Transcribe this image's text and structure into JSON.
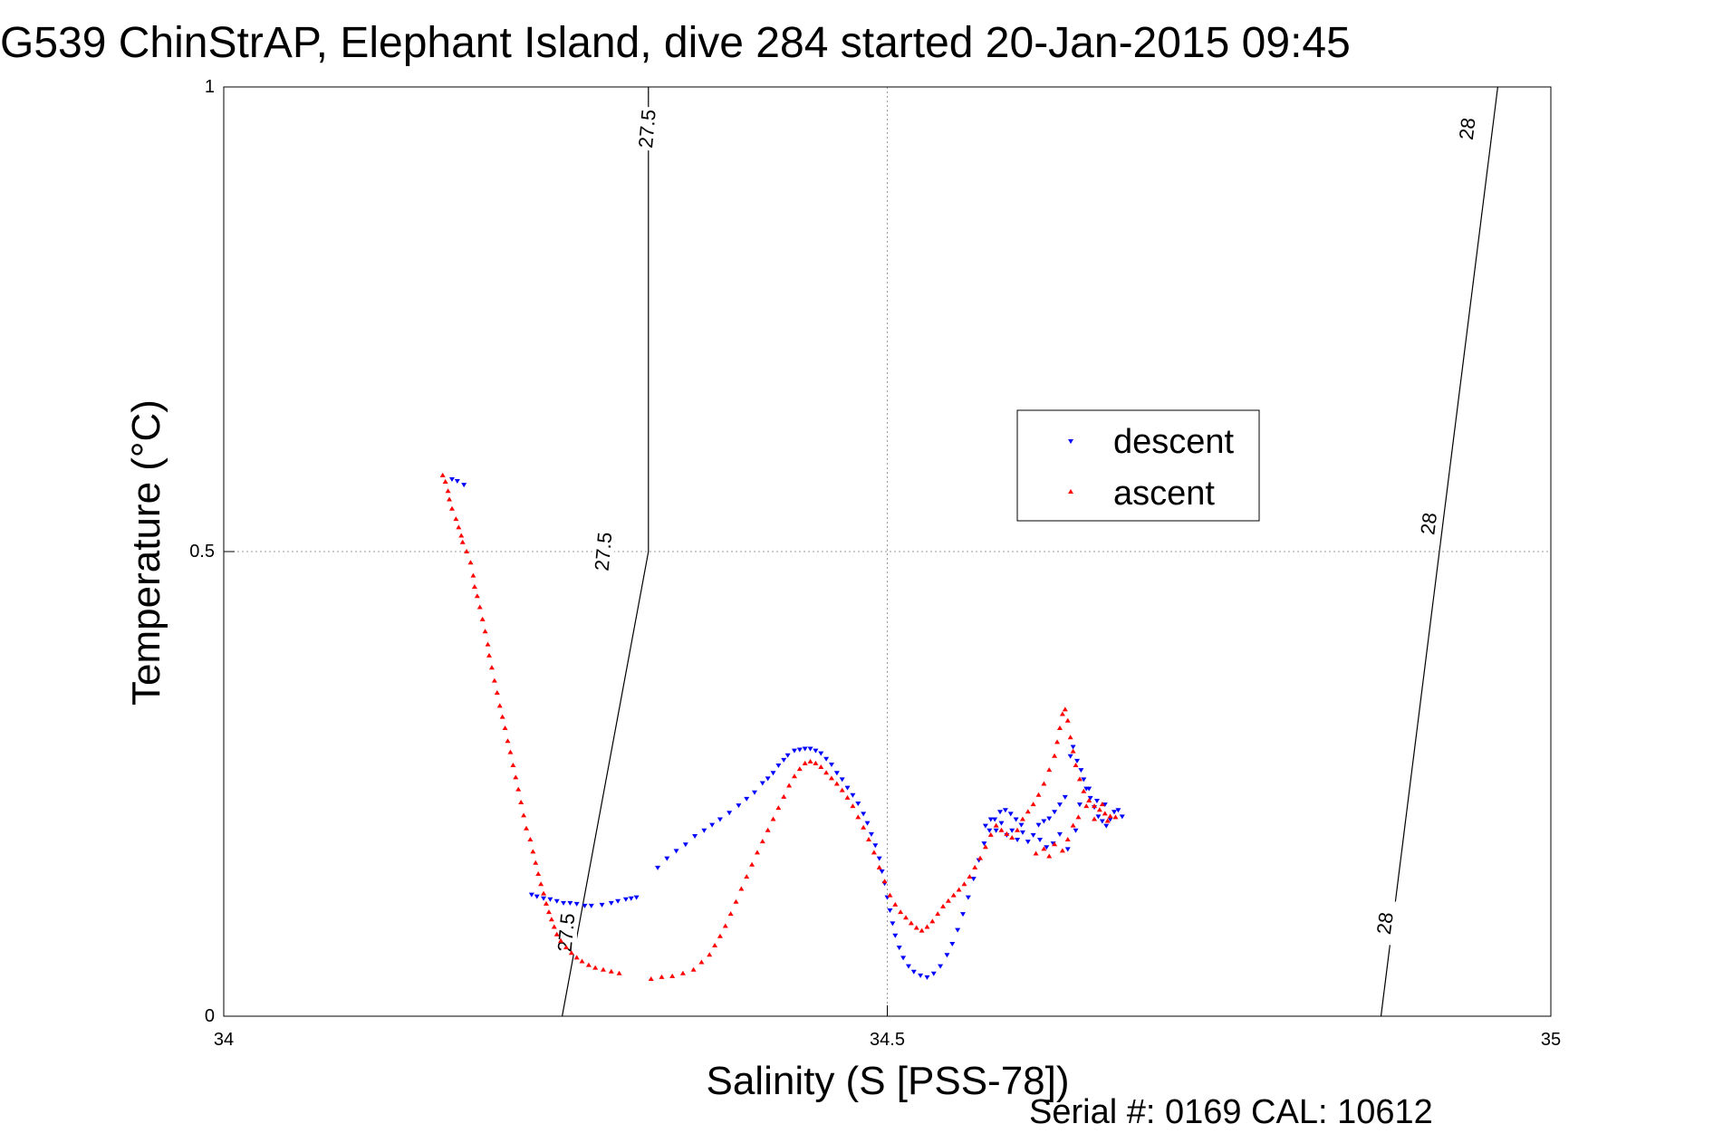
{
  "chart_data": {
    "type": "scatter",
    "title": "G539 ChinStrAP, Elephant Island, dive 284 started 20-Jan-2015 09:45",
    "xlabel": "Salinity (S [PSS-78])",
    "ylabel": "Temperature (°C)",
    "xlim": [
      34,
      35
    ],
    "ylim": [
      0,
      1
    ],
    "xticks": [
      "34",
      "34.5",
      "35"
    ],
    "yticks": [
      "0",
      "0.5",
      "1"
    ],
    "grid": true,
    "legend_position": "right",
    "footnote": "Serial #: 0169 CAL: 10612",
    "isopycnals": [
      {
        "label": "27.5",
        "points": [
          [
            34.255,
            0
          ],
          [
            34.32,
            0.5
          ],
          [
            34.32,
            1
          ]
        ],
        "label_positions": [
          [
            34.258,
            0.09
          ],
          [
            34.286,
            0.5
          ],
          [
            34.319,
            0.955
          ]
        ]
      },
      {
        "label": "28",
        "points": [
          [
            34.872,
            0
          ],
          [
            34.96,
            1
          ]
        ],
        "label_positions": [
          [
            34.875,
            0.1
          ],
          [
            34.908,
            0.53
          ],
          [
            34.937,
            0.955
          ]
        ]
      }
    ],
    "series": [
      {
        "name": "descent",
        "color": "#0000ff",
        "marker": "triangle-down",
        "points": [
          [
            34.172,
            0.578
          ],
          [
            34.176,
            0.576
          ],
          [
            34.181,
            0.572
          ],
          [
            34.232,
            0.131
          ],
          [
            34.236,
            0.129
          ],
          [
            34.241,
            0.127
          ],
          [
            34.246,
            0.126
          ],
          [
            34.251,
            0.124
          ],
          [
            34.256,
            0.122
          ],
          [
            34.261,
            0.122
          ],
          [
            34.266,
            0.121
          ],
          [
            34.272,
            0.119
          ],
          [
            34.277,
            0.119
          ],
          [
            34.285,
            0.12
          ],
          [
            34.292,
            0.122
          ],
          [
            34.297,
            0.124
          ],
          [
            34.303,
            0.126
          ],
          [
            34.307,
            0.127
          ],
          [
            34.311,
            0.128
          ],
          [
            34.327,
            0.16
          ],
          [
            34.334,
            0.17
          ],
          [
            34.341,
            0.178
          ],
          [
            34.348,
            0.185
          ],
          [
            34.355,
            0.194
          ],
          [
            34.362,
            0.2
          ],
          [
            34.368,
            0.206
          ],
          [
            34.374,
            0.212
          ],
          [
            34.381,
            0.219
          ],
          [
            34.388,
            0.227
          ],
          [
            34.394,
            0.234
          ],
          [
            34.4,
            0.241
          ],
          [
            34.406,
            0.251
          ],
          [
            34.41,
            0.256
          ],
          [
            34.414,
            0.262
          ],
          [
            34.418,
            0.27
          ],
          [
            34.422,
            0.276
          ],
          [
            34.425,
            0.281
          ],
          [
            34.43,
            0.286
          ],
          [
            34.434,
            0.287
          ],
          [
            34.438,
            0.288
          ],
          [
            34.442,
            0.288
          ],
          [
            34.446,
            0.286
          ],
          [
            34.45,
            0.283
          ],
          [
            34.454,
            0.277
          ],
          [
            34.458,
            0.271
          ],
          [
            34.462,
            0.262
          ],
          [
            34.466,
            0.255
          ],
          [
            34.47,
            0.246
          ],
          [
            34.474,
            0.238
          ],
          [
            34.478,
            0.229
          ],
          [
            34.482,
            0.218
          ],
          [
            34.485,
            0.208
          ],
          [
            34.488,
            0.196
          ],
          [
            34.491,
            0.184
          ],
          [
            34.494,
            0.17
          ],
          [
            34.496,
            0.156
          ],
          [
            34.498,
            0.143
          ],
          [
            34.5,
            0.128
          ],
          [
            34.502,
            0.114
          ],
          [
            34.504,
            0.1
          ],
          [
            34.506,
            0.087
          ],
          [
            34.509,
            0.074
          ],
          [
            34.512,
            0.063
          ],
          [
            34.516,
            0.054
          ],
          [
            34.52,
            0.048
          ],
          [
            34.525,
            0.044
          ],
          [
            34.53,
            0.042
          ],
          [
            34.535,
            0.046
          ],
          [
            34.54,
            0.054
          ],
          [
            34.545,
            0.066
          ],
          [
            34.549,
            0.078
          ],
          [
            34.553,
            0.093
          ],
          [
            34.557,
            0.11
          ],
          [
            34.561,
            0.128
          ],
          [
            34.565,
            0.148
          ],
          [
            34.569,
            0.168
          ],
          [
            34.573,
            0.186
          ],
          [
            34.577,
            0.2
          ],
          [
            34.581,
            0.212
          ],
          [
            34.585,
            0.22
          ],
          [
            34.589,
            0.222
          ],
          [
            34.593,
            0.218
          ],
          [
            34.597,
            0.212
          ],
          [
            34.601,
            0.206
          ],
          [
            34.574,
            0.205
          ],
          [
            34.578,
            0.212
          ],
          [
            34.582,
            0.2
          ],
          [
            34.586,
            0.208
          ],
          [
            34.59,
            0.195
          ],
          [
            34.594,
            0.2
          ],
          [
            34.598,
            0.19
          ],
          [
            34.602,
            0.198
          ],
          [
            34.606,
            0.188
          ],
          [
            34.61,
            0.195
          ],
          [
            34.614,
            0.206
          ],
          [
            34.618,
            0.21
          ],
          [
            34.622,
            0.213
          ],
          [
            34.626,
            0.22
          ],
          [
            34.63,
            0.228
          ],
          [
            34.634,
            0.236
          ],
          [
            34.638,
            0.28
          ],
          [
            34.64,
            0.29
          ],
          [
            34.643,
            0.275
          ],
          [
            34.646,
            0.265
          ],
          [
            34.648,
            0.255
          ],
          [
            34.65,
            0.245
          ],
          [
            34.653,
            0.235
          ],
          [
            34.656,
            0.225
          ],
          [
            34.659,
            0.215
          ],
          [
            34.662,
            0.21
          ],
          [
            34.665,
            0.205
          ],
          [
            34.668,
            0.212
          ],
          [
            34.671,
            0.22
          ],
          [
            34.674,
            0.222
          ],
          [
            34.677,
            0.215
          ],
          [
            34.615,
            0.19
          ],
          [
            34.62,
            0.182
          ],
          [
            34.625,
            0.186
          ],
          [
            34.63,
            0.196
          ],
          [
            34.636,
            0.18
          ],
          [
            34.642,
            0.2
          ],
          [
            34.645,
            0.228
          ],
          [
            34.652,
            0.245
          ],
          [
            34.658,
            0.232
          ],
          [
            34.664,
            0.228
          ]
        ]
      },
      {
        "name": "ascent",
        "color": "#ff0000",
        "marker": "triangle-up",
        "points": [
          [
            34.165,
            0.582
          ],
          [
            34.167,
            0.575
          ],
          [
            34.169,
            0.565
          ],
          [
            34.17,
            0.556
          ],
          [
            34.172,
            0.546
          ],
          [
            34.175,
            0.535
          ],
          [
            34.177,
            0.526
          ],
          [
            34.179,
            0.517
          ],
          [
            34.18,
            0.51
          ],
          [
            34.183,
            0.5
          ],
          [
            34.186,
            0.488
          ],
          [
            34.188,
            0.474
          ],
          [
            34.189,
            0.462
          ],
          [
            34.191,
            0.452
          ],
          [
            34.193,
            0.44
          ],
          [
            34.195,
            0.427
          ],
          [
            34.197,
            0.414
          ],
          [
            34.199,
            0.4
          ],
          [
            34.2,
            0.388
          ],
          [
            34.202,
            0.375
          ],
          [
            34.204,
            0.361
          ],
          [
            34.206,
            0.348
          ],
          [
            34.208,
            0.334
          ],
          [
            34.21,
            0.322
          ],
          [
            34.212,
            0.31
          ],
          [
            34.214,
            0.296
          ],
          [
            34.216,
            0.284
          ],
          [
            34.218,
            0.27
          ],
          [
            34.22,
            0.257
          ],
          [
            34.222,
            0.244
          ],
          [
            34.224,
            0.23
          ],
          [
            34.226,
            0.216
          ],
          [
            34.228,
            0.202
          ],
          [
            34.231,
            0.19
          ],
          [
            34.233,
            0.177
          ],
          [
            34.235,
            0.165
          ],
          [
            34.237,
            0.153
          ],
          [
            34.239,
            0.142
          ],
          [
            34.241,
            0.132
          ],
          [
            34.243,
            0.121
          ],
          [
            34.245,
            0.112
          ],
          [
            34.247,
            0.104
          ],
          [
            34.249,
            0.096
          ],
          [
            34.251,
            0.088
          ],
          [
            34.254,
            0.081
          ],
          [
            34.258,
            0.074
          ],
          [
            34.262,
            0.068
          ],
          [
            34.266,
            0.063
          ],
          [
            34.27,
            0.059
          ],
          [
            34.275,
            0.055
          ],
          [
            34.28,
            0.052
          ],
          [
            34.286,
            0.05
          ],
          [
            34.292,
            0.048
          ],
          [
            34.298,
            0.046
          ],
          [
            34.322,
            0.04
          ],
          [
            34.33,
            0.042
          ],
          [
            34.338,
            0.043
          ],
          [
            34.346,
            0.046
          ],
          [
            34.354,
            0.05
          ],
          [
            34.36,
            0.058
          ],
          [
            34.366,
            0.066
          ],
          [
            34.37,
            0.076
          ],
          [
            34.374,
            0.086
          ],
          [
            34.378,
            0.097
          ],
          [
            34.382,
            0.11
          ],
          [
            34.386,
            0.123
          ],
          [
            34.39,
            0.137
          ],
          [
            34.394,
            0.15
          ],
          [
            34.398,
            0.163
          ],
          [
            34.402,
            0.176
          ],
          [
            34.406,
            0.188
          ],
          [
            34.41,
            0.2
          ],
          [
            34.414,
            0.212
          ],
          [
            34.418,
            0.224
          ],
          [
            34.422,
            0.236
          ],
          [
            34.426,
            0.248
          ],
          [
            34.43,
            0.258
          ],
          [
            34.434,
            0.266
          ],
          [
            34.438,
            0.272
          ],
          [
            34.442,
            0.274
          ],
          [
            34.446,
            0.272
          ],
          [
            34.45,
            0.268
          ],
          [
            34.454,
            0.262
          ],
          [
            34.458,
            0.256
          ],
          [
            34.462,
            0.25
          ],
          [
            34.466,
            0.243
          ],
          [
            34.47,
            0.235
          ],
          [
            34.474,
            0.226
          ],
          [
            34.478,
            0.214
          ],
          [
            34.482,
            0.203
          ],
          [
            34.486,
            0.19
          ],
          [
            34.49,
            0.176
          ],
          [
            34.494,
            0.16
          ],
          [
            34.498,
            0.145
          ],
          [
            34.502,
            0.13
          ],
          [
            34.506,
            0.12
          ],
          [
            34.51,
            0.112
          ],
          [
            34.514,
            0.106
          ],
          [
            34.518,
            0.1
          ],
          [
            34.522,
            0.095
          ],
          [
            34.526,
            0.092
          ],
          [
            34.53,
            0.096
          ],
          [
            34.534,
            0.102
          ],
          [
            34.538,
            0.11
          ],
          [
            34.542,
            0.118
          ],
          [
            34.546,
            0.124
          ],
          [
            34.55,
            0.13
          ],
          [
            34.554,
            0.136
          ],
          [
            34.558,
            0.142
          ],
          [
            34.562,
            0.15
          ],
          [
            34.566,
            0.16
          ],
          [
            34.57,
            0.17
          ],
          [
            34.574,
            0.182
          ],
          [
            34.578,
            0.195
          ],
          [
            34.582,
            0.205
          ],
          [
            34.586,
            0.2
          ],
          [
            34.59,
            0.196
          ],
          [
            34.594,
            0.192
          ],
          [
            34.598,
            0.2
          ],
          [
            34.602,
            0.212
          ],
          [
            34.606,
            0.22
          ],
          [
            34.61,
            0.228
          ],
          [
            34.614,
            0.238
          ],
          [
            34.618,
            0.25
          ],
          [
            34.622,
            0.265
          ],
          [
            34.626,
            0.28
          ],
          [
            34.628,
            0.295
          ],
          [
            34.63,
            0.31
          ],
          [
            34.632,
            0.325
          ],
          [
            34.634,
            0.33
          ],
          [
            34.636,
            0.318
          ],
          [
            34.638,
            0.3
          ],
          [
            34.64,
            0.285
          ],
          [
            34.642,
            0.27
          ],
          [
            34.645,
            0.255
          ],
          [
            34.648,
            0.242
          ],
          [
            34.652,
            0.232
          ],
          [
            34.656,
            0.226
          ],
          [
            34.66,
            0.222
          ],
          [
            34.664,
            0.218
          ],
          [
            34.668,
            0.215
          ],
          [
            34.672,
            0.214
          ],
          [
            34.612,
            0.175
          ],
          [
            34.618,
            0.18
          ],
          [
            34.622,
            0.172
          ],
          [
            34.626,
            0.185
          ],
          [
            34.632,
            0.178
          ],
          [
            34.636,
            0.19
          ],
          [
            34.64,
            0.205
          ],
          [
            34.644,
            0.214
          ],
          [
            34.65,
            0.226
          ],
          [
            34.656,
            0.212
          ],
          [
            34.662,
            0.228
          ],
          [
            34.666,
            0.21
          ]
        ]
      }
    ]
  }
}
